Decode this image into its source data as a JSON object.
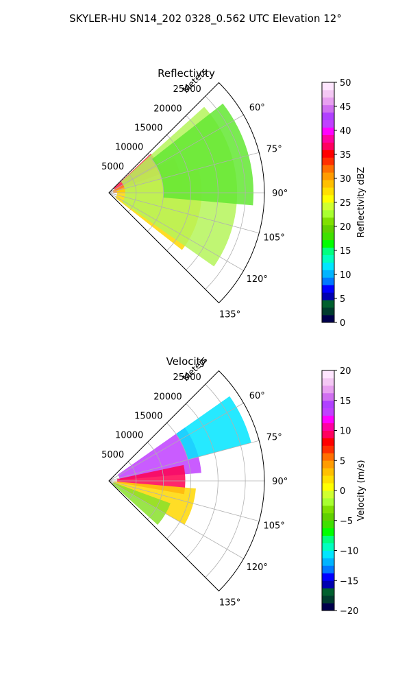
{
  "figure_title": "SKYLER-HU  SN14_202  0328_0.562 UTC Elevation 12°",
  "chart_data": [
    {
      "type": "heatmap",
      "subtype": "polar-sector radar PPI",
      "title": "Reflectivity",
      "r_axis_label": "Meters",
      "r_ticks": [
        "5000",
        "10000",
        "15000",
        "20000",
        "25000"
      ],
      "r_tick_values": [
        5000,
        10000,
        15000,
        20000,
        25000
      ],
      "r_max": 28500,
      "theta_ticks": [
        "60°",
        "75°",
        "90°",
        "105°",
        "120°",
        "135°"
      ],
      "theta_tick_values": [
        60,
        75,
        90,
        105,
        120,
        135
      ],
      "theta_range": [
        45,
        135
      ],
      "grid": true,
      "colorbar": {
        "label": "Reflectivity dBZ",
        "range": [
          0,
          50
        ],
        "ticks": [
          "0",
          "5",
          "10",
          "15",
          "20",
          "25",
          "30",
          "35",
          "40",
          "45",
          "50"
        ],
        "colors": [
          "#00004c",
          "#003c2e",
          "#00602e",
          "#0000b0",
          "#0000ff",
          "#0078ff",
          "#00b4ff",
          "#00e6ff",
          "#00ffc0",
          "#00ff80",
          "#00ff00",
          "#40e000",
          "#60d000",
          "#80e000",
          "#a8ff30",
          "#d0ff30",
          "#ffff00",
          "#ffe000",
          "#ffc000",
          "#ff9c00",
          "#ff7000",
          "#ff3000",
          "#ff0000",
          "#ff0060",
          "#ff00a0",
          "#ff00ff",
          "#c040ff",
          "#b040ff",
          "#d070f0",
          "#e8a0f0",
          "#f4c8f4",
          "#ffe6ff"
        ]
      },
      "echo_levels": [
        {
          "level": "35-40",
          "color": "#ff1a40",
          "r": [
            1200,
            10500
          ],
          "theta": [
            47,
            70
          ]
        },
        {
          "level": "30-35",
          "color": "#ff8c1a",
          "r": [
            800,
            13500
          ],
          "theta": [
            62,
            90
          ]
        },
        {
          "level": "25-30",
          "color": "#ffd700",
          "r": [
            1500,
            17000
          ],
          "theta": [
            75,
            128
          ]
        },
        {
          "level": "20-25",
          "color": "#b5f55a",
          "r": [
            3000,
            23500
          ],
          "theta": [
            48,
            125
          ]
        },
        {
          "level": "15-20",
          "color": "#63e832",
          "r": [
            10000,
            26500
          ],
          "theta": [
            52,
            95
          ]
        }
      ]
    },
    {
      "type": "heatmap",
      "subtype": "polar-sector radar PPI",
      "title": "Velocity",
      "r_axis_label": "Meters",
      "r_ticks": [
        "5000",
        "10000",
        "15000",
        "20000",
        "25000"
      ],
      "r_tick_values": [
        5000,
        10000,
        15000,
        20000,
        25000
      ],
      "r_max": 28500,
      "theta_ticks": [
        "60°",
        "75°",
        "90°",
        "105°",
        "120°",
        "135°"
      ],
      "theta_tick_values": [
        60,
        75,
        90,
        105,
        120,
        135
      ],
      "theta_range": [
        45,
        135
      ],
      "grid": true,
      "colorbar": {
        "label": "Velocity (m/s)",
        "range": [
          -20,
          20
        ],
        "ticks": [
          "−20",
          "−15",
          "−10",
          "−5",
          "0",
          "5",
          "10",
          "15",
          "20"
        ],
        "colors": [
          "#00004c",
          "#003c2e",
          "#00602e",
          "#0000b0",
          "#0000ff",
          "#0078ff",
          "#00b4ff",
          "#00e6ff",
          "#00ffc0",
          "#00ff80",
          "#00ff00",
          "#40e000",
          "#60d000",
          "#80e000",
          "#a8ff30",
          "#d0ff30",
          "#ffff00",
          "#ffe000",
          "#ffc000",
          "#ff9c00",
          "#ff7000",
          "#ff3000",
          "#ff0000",
          "#ff0060",
          "#ff00a0",
          "#ff00ff",
          "#c040ff",
          "#b040ff",
          "#d070f0",
          "#e8a0f0",
          "#f4c8f4",
          "#ffe6ff"
        ]
      },
      "echo_levels": [
        {
          "level": "+8 to +15",
          "color": "#c040ff",
          "r": [
            2000,
            17000
          ],
          "theta": [
            55,
            85
          ]
        },
        {
          "level": "+5 to +10",
          "color": "#ff0050",
          "r": [
            1500,
            14000
          ],
          "theta": [
            78,
            100
          ]
        },
        {
          "level": "0 to +5",
          "color": "#ffd700",
          "r": [
            1000,
            16000
          ],
          "theta": [
            95,
            120
          ]
        },
        {
          "level": "-5 to 0",
          "color": "#88e02a",
          "r": [
            800,
            12000
          ],
          "theta": [
            110,
            132
          ]
        },
        {
          "level": "-15 to -10",
          "color": "#00e5ff",
          "r": [
            15000,
            27000
          ],
          "theta": [
            55,
            75
          ]
        }
      ]
    }
  ]
}
